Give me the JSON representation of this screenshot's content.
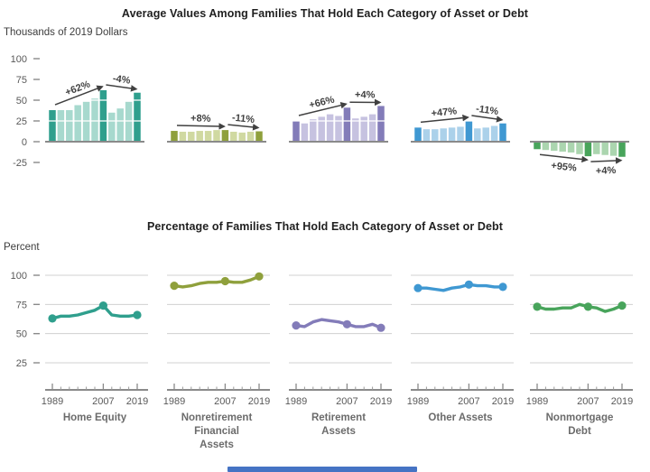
{
  "figure": {
    "top_title": "Average Values Among Families That Hold Each Category of Asset or Debt",
    "top_unit_label": "Thousands of 2019 Dollars",
    "bottom_title": "Percentage of Families That Hold Each Category of Asset or Debt",
    "bottom_unit_label": "Percent"
  },
  "scrollbar": {
    "color": "#4573C4"
  },
  "chart_data": {
    "survey_years": [
      1989,
      1992,
      1995,
      1998,
      2001,
      2004,
      2007,
      2010,
      2013,
      2016,
      2019
    ],
    "x_tick_labels": [
      "1989",
      "2007",
      "2019"
    ],
    "emphasized_years": [
      1989,
      2007,
      2019
    ],
    "top_row": {
      "type": "bar",
      "title": "Average Values Among Families That Hold Each Category of Asset or Debt",
      "ylabel": "Thousands of 2019 Dollars",
      "y_ticks": [
        100,
        75,
        50,
        25,
        0,
        -25
      ],
      "ylim": [
        -25,
        100
      ],
      "grid": "white lines over bars at 25 and 50"
    },
    "bottom_row": {
      "type": "line",
      "title": "Percentage of Families That Hold Each Category of Asset or Debt",
      "ylabel": "Percent",
      "y_ticks": [
        100,
        75,
        50,
        25
      ],
      "ylim": [
        25,
        100
      ],
      "grid": "light gray horizontal lines at each tick"
    },
    "panels": [
      {
        "category": "Home Equity",
        "label_lines": [
          "Home Equity"
        ],
        "color_dark": "#2F9F8D",
        "color_light": "#A7D9CE",
        "bar_values": [
          38,
          38,
          38,
          44,
          48,
          52,
          62,
          35,
          40,
          48,
          59
        ],
        "bar_annotations": [
          {
            "from_year": 1989,
            "to_year": 2007,
            "label": "+62%"
          },
          {
            "from_year": 2007,
            "to_year": 2019,
            "label": "-4%"
          }
        ],
        "line_values": [
          63,
          65,
          65,
          66,
          68,
          70,
          74,
          66,
          65,
          65,
          66
        ],
        "line_marker_years": [
          1989,
          2007,
          2019
        ]
      },
      {
        "category": "Nonretirement Financial Assets",
        "label_lines": [
          "Nonretirement",
          "Financial",
          "Assets"
        ],
        "color_dark": "#8FA03C",
        "color_light": "#D0D9A1",
        "bar_values": [
          13,
          12,
          12,
          13,
          13,
          14,
          14,
          12,
          11,
          12,
          12.5
        ],
        "bar_annotations": [
          {
            "from_year": 1989,
            "to_year": 2007,
            "label": "+8%"
          },
          {
            "from_year": 2007,
            "to_year": 2019,
            "label": "-11%"
          }
        ],
        "line_values": [
          91,
          90,
          91,
          93,
          94,
          94,
          95,
          94,
          94,
          96,
          99
        ],
        "line_marker_years": [
          1989,
          2007,
          2019
        ]
      },
      {
        "category": "Retirement Assets",
        "label_lines": [
          "Retirement",
          "Assets"
        ],
        "color_dark": "#837CB9",
        "color_light": "#C6C2E0",
        "bar_values": [
          25,
          22,
          27,
          30,
          33,
          31,
          41,
          28,
          30,
          33,
          43
        ],
        "bar_annotations": [
          {
            "from_year": 1989,
            "to_year": 2007,
            "label": "+66%"
          },
          {
            "from_year": 2007,
            "to_year": 2019,
            "label": "+4%"
          }
        ],
        "line_values": [
          57,
          56,
          60,
          62,
          61,
          60,
          58,
          56,
          56,
          58,
          55
        ],
        "line_marker_years": [
          1989,
          2007,
          2019
        ]
      },
      {
        "category": "Other Assets",
        "label_lines": [
          "Other Assets"
        ],
        "color_dark": "#3F98D2",
        "color_light": "#ABD1EA",
        "bar_values": [
          17,
          15,
          15,
          16,
          17,
          18,
          25,
          16,
          17,
          19,
          22
        ],
        "bar_annotations": [
          {
            "from_year": 1989,
            "to_year": 2007,
            "label": "+47%"
          },
          {
            "from_year": 2007,
            "to_year": 2019,
            "label": "-11%"
          }
        ],
        "line_values": [
          89,
          89,
          88,
          87,
          89,
          90,
          92,
          91,
          91,
          90,
          90
        ],
        "line_marker_years": [
          1989,
          2007,
          2019
        ]
      },
      {
        "category": "Nonmortgage Debt",
        "label_lines": [
          "Nonmortgage",
          "Debt"
        ],
        "color_dark": "#48A45B",
        "color_light": "#ABD5AF",
        "bar_values": [
          -9,
          -10,
          -11,
          -12,
          -13,
          -15,
          -17.5,
          -15,
          -16,
          -17,
          -18.2
        ],
        "bar_annotations": [
          {
            "from_year": 1989,
            "to_year": 2007,
            "label": "+95%"
          },
          {
            "from_year": 2007,
            "to_year": 2019,
            "label": "+4%"
          }
        ],
        "line_values": [
          73,
          71,
          71,
          72,
          72,
          75,
          73,
          72,
          69,
          71,
          74
        ],
        "line_marker_years": [
          1989,
          2007,
          2019
        ]
      }
    ]
  }
}
